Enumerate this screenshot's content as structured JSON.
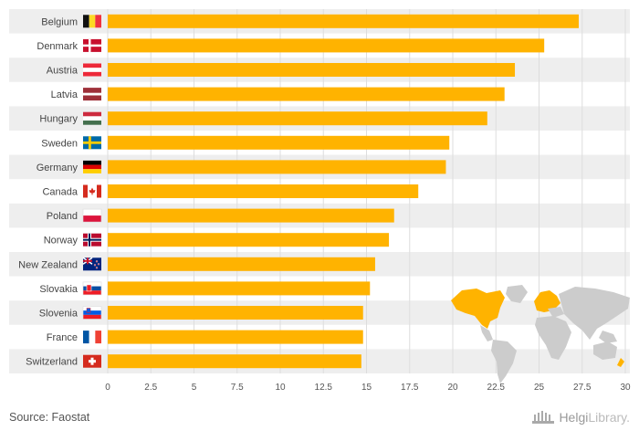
{
  "chart_data": {
    "type": "bar",
    "orientation": "horizontal",
    "title": "",
    "xlabel": "",
    "ylabel": "",
    "xlim": [
      0,
      30
    ],
    "xticks": [
      "0",
      "2.5",
      "5",
      "7.5",
      "10",
      "12.5",
      "15",
      "17.5",
      "20",
      "22.5",
      "25",
      "27.5",
      "30"
    ],
    "categories": [
      "Belgium",
      "Denmark",
      "Austria",
      "Latvia",
      "Hungary",
      "Sweden",
      "Germany",
      "Canada",
      "Poland",
      "Norway",
      "New Zealand",
      "Slovakia",
      "Slovenia",
      "France",
      "Switzerland"
    ],
    "values": [
      27.3,
      25.3,
      23.6,
      23.0,
      22.0,
      19.8,
      19.6,
      18.0,
      16.6,
      16.3,
      15.5,
      15.2,
      14.8,
      14.8,
      14.7
    ],
    "bar_color": "#FFB300",
    "stripe_color": "#EEEEEE",
    "flags": [
      "belgium-flag",
      "denmark-flag",
      "austria-flag",
      "latvia-flag",
      "hungary-flag",
      "sweden-flag",
      "germany-flag",
      "canada-flag",
      "poland-flag",
      "norway-flag",
      "new-zealand-flag",
      "slovakia-flag",
      "slovenia-flag",
      "france-flag",
      "switzerland-flag"
    ],
    "grid": true
  },
  "footer": {
    "source": "Source: Faostat",
    "brand_left": "Helgi",
    "brand_right": "Library."
  },
  "map": {
    "name": "world-map-icon",
    "base_color": "#CCCCCC",
    "highlight_color": "#FFB300"
  }
}
